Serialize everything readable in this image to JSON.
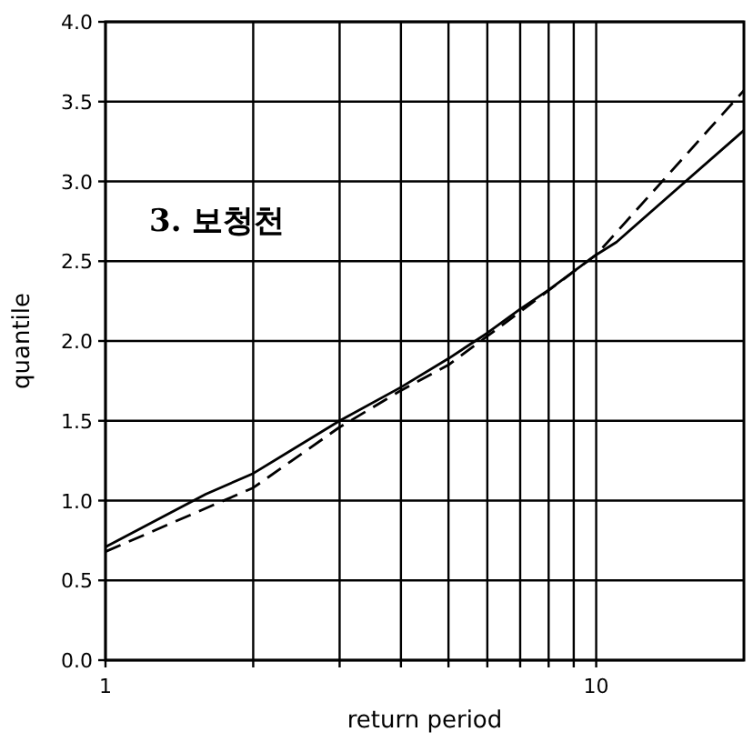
{
  "chart_data": {
    "type": "line",
    "xlabel": "return period",
    "ylabel": "quantile",
    "annotations": [
      "3. 보청천"
    ],
    "log": "x",
    "grid": true,
    "xlim": [
      1,
      20
    ],
    "ylim": [
      0,
      4
    ],
    "xticks": [
      1,
      {
        "value": 2,
        "label": null
      },
      {
        "value": 3,
        "label": null
      },
      {
        "value": 4,
        "label": null
      },
      {
        "value": 5,
        "label": null
      },
      {
        "value": 6,
        "label": null
      },
      {
        "value": 7,
        "label": null
      },
      {
        "value": 8,
        "label": null
      },
      {
        "value": 9,
        "label": null
      },
      10
    ],
    "yticks": [
      {
        "value": 0,
        "label": "0.0"
      },
      {
        "value": 0.5,
        "label": "0.5"
      },
      {
        "value": 1,
        "label": "1.0"
      },
      {
        "value": 1.5,
        "label": "1.5"
      },
      {
        "value": 2,
        "label": "2.0"
      },
      {
        "value": 2.5,
        "label": "2.5"
      },
      {
        "value": 3,
        "label": "3.0"
      },
      {
        "value": 3.5,
        "label": "3.5"
      },
      {
        "value": 4,
        "label": "4.0"
      }
    ],
    "series": [
      {
        "color": "#000000",
        "line_style": "solid",
        "x": [
          1,
          1.6,
          2,
          3,
          4,
          5,
          6,
          7,
          8,
          10,
          11,
          20
        ],
        "values": [
          0.71,
          1.04,
          1.17,
          1.5,
          1.71,
          1.89,
          2.05,
          2.2,
          2.32,
          2.54,
          2.62,
          3.32
        ]
      },
      {
        "color": "#000000",
        "line_style": "dashed",
        "x": [
          1,
          2,
          3,
          4,
          5,
          6,
          10,
          20
        ],
        "values": [
          0.68,
          1.08,
          1.46,
          1.69,
          1.85,
          2.03,
          2.54,
          3.57
        ]
      }
    ]
  }
}
